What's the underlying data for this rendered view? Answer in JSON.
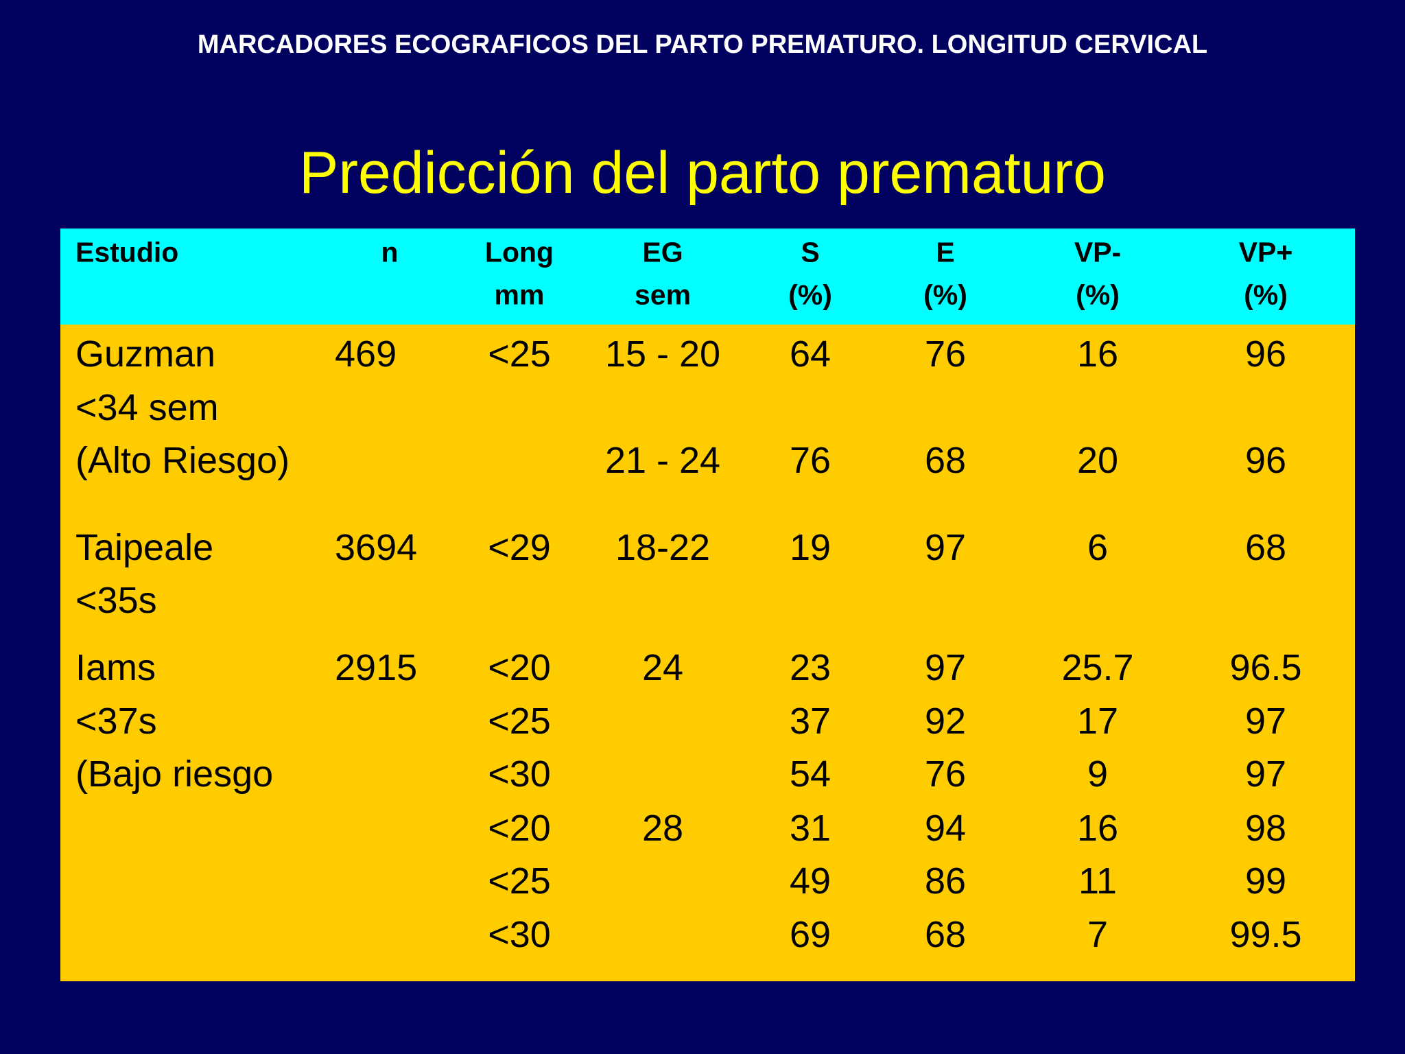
{
  "header": {
    "title": "MARCADORES ECOGRAFICOS DEL PARTO PREMATURO. LONGITUD CERVICAL"
  },
  "subtitle": "Predicción del parto prematuro",
  "table": {
    "columns": [
      [
        "Estudio"
      ],
      [
        "n"
      ],
      [
        "Long",
        "mm"
      ],
      [
        "EG",
        "sem"
      ],
      [
        "S",
        "(%)"
      ],
      [
        "E",
        "(%)"
      ],
      [
        "VP-",
        "(%)"
      ],
      [
        "VP+",
        "(%)"
      ]
    ],
    "rows": [
      {
        "estudio": "Guzman",
        "n": 469,
        "long": "<25",
        "eg": "15 - 20",
        "s": 64,
        "e": 76,
        "vpm": 16,
        "vpp": 96
      },
      {
        "estudio": "<34 sem"
      },
      {
        "estudio": "(Alto Riesgo)",
        "eg": "21 - 24",
        "s": 76,
        "e": 68,
        "vpm": 20,
        "vpp": 96
      },
      {
        "estudio": "Taipeale",
        "n": 3694,
        "long": "<29",
        "eg": "18-22",
        "s": 19,
        "e": 97,
        "vpm": 6,
        "vpp": 68
      },
      {
        "estudio": "<35s"
      },
      {
        "estudio": "Iams",
        "n": 2915,
        "long": "<20",
        "eg": 24,
        "s": 23,
        "e": 97,
        "vpm": 25.7,
        "vpp": 96.5
      },
      {
        "estudio": "<37s",
        "long": "<25",
        "s": 37,
        "e": 92,
        "vpm": 17,
        "vpp": 97
      },
      {
        "estudio": "(Bajo riesgo",
        "long": "<30",
        "s": 54,
        "e": 76,
        "vpm": 9,
        "vpp": 97
      },
      {
        "long": "<20",
        "eg": 28,
        "s": 31,
        "e": 94,
        "vpm": 16,
        "vpp": 98
      },
      {
        "long": "<25",
        "s": 49,
        "e": 86,
        "vpm": 11,
        "vpp": 99
      },
      {
        "long": "<30",
        "s": 69,
        "e": 68,
        "vpm": 7,
        "vpp": 99.5
      }
    ]
  }
}
